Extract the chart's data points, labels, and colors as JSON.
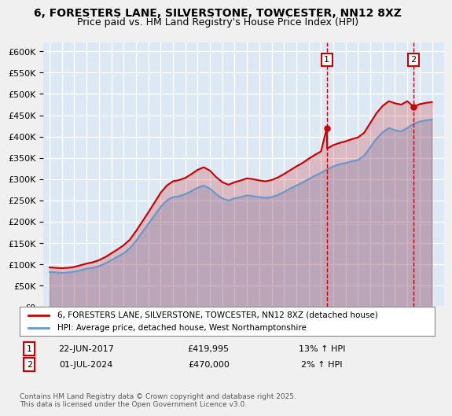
{
  "title_line1": "6, FORESTERS LANE, SILVERSTONE, TOWCESTER, NN12 8XZ",
  "title_line2": "Price paid vs. HM Land Registry's House Price Index (HPI)",
  "legend_line1": "6, FORESTERS LANE, SILVERSTONE, TOWCESTER, NN12 8XZ (detached house)",
  "legend_line2": "HPI: Average price, detached house, West Northamptonshire",
  "annotation1_label": "1",
  "annotation1_date": "22-JUN-2017",
  "annotation1_price": "£419,995",
  "annotation1_hpi": "13% ↑ HPI",
  "annotation2_label": "2",
  "annotation2_date": "01-JUL-2024",
  "annotation2_price": "£470,000",
  "annotation2_hpi": "2% ↑ HPI",
  "footer": "Contains HM Land Registry data © Crown copyright and database right 2025.\nThis data is licensed under the Open Government Licence v3.0.",
  "ylabel": "",
  "ylim": [
    0,
    620000
  ],
  "yticks": [
    0,
    50000,
    100000,
    150000,
    200000,
    250000,
    300000,
    350000,
    400000,
    450000,
    500000,
    550000,
    600000
  ],
  "bg_color": "#dce9f5",
  "plot_bg_color": "#dce9f5",
  "grid_color": "#ffffff",
  "red_color": "#cc0000",
  "blue_color": "#6699cc",
  "sale1_year": 2017.47,
  "sale1_price": 419995,
  "sale2_year": 2024.5,
  "sale2_price": 470000
}
